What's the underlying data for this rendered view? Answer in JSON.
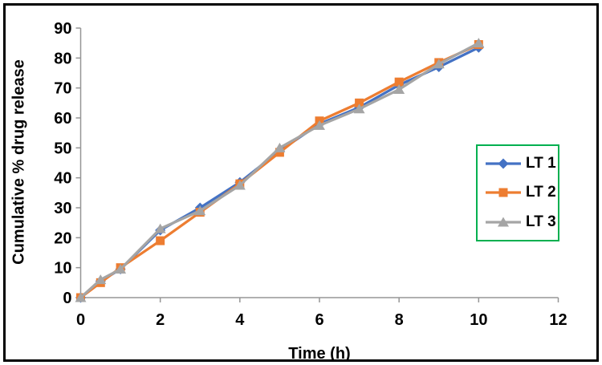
{
  "style": {
    "background": "#FFFFFF",
    "frame_border_color": "#000000",
    "axis_color": "#969696",
    "text_color": "#000000",
    "legend_border_color": "#00B050"
  },
  "chart_data": {
    "type": "line",
    "title": "",
    "xlabel": "Time (h)",
    "ylabel": "Cumulative % drug release",
    "xlim": [
      0,
      12
    ],
    "ylim": [
      0,
      90
    ],
    "x_ticks": [
      0,
      2,
      4,
      6,
      8,
      10,
      12
    ],
    "y_ticks": [
      0,
      10,
      20,
      30,
      40,
      50,
      60,
      70,
      80,
      90
    ],
    "grid": false,
    "legend_position": "middle-right",
    "x": [
      0,
      0.5,
      1,
      2,
      3,
      4,
      5,
      6,
      7,
      8,
      9,
      10
    ],
    "series": [
      {
        "name": "LT 1",
        "color": "#4472C4",
        "marker": "diamond",
        "values": [
          0,
          5.5,
          9.5,
          22.5,
          30,
          38.5,
          49,
          58,
          63.5,
          71,
          77,
          83.5
        ]
      },
      {
        "name": "LT 2",
        "color": "#ED7D31",
        "marker": "square",
        "values": [
          0,
          5,
          10,
          19,
          28.5,
          38,
          48.5,
          59,
          65,
          72,
          78.5,
          84.5
        ]
      },
      {
        "name": "LT 3",
        "color": "#A5A5A5",
        "marker": "triangle",
        "values": [
          0,
          6,
          9.5,
          23,
          29,
          37.5,
          50,
          57.5,
          63,
          69.5,
          78,
          85
        ]
      }
    ]
  }
}
